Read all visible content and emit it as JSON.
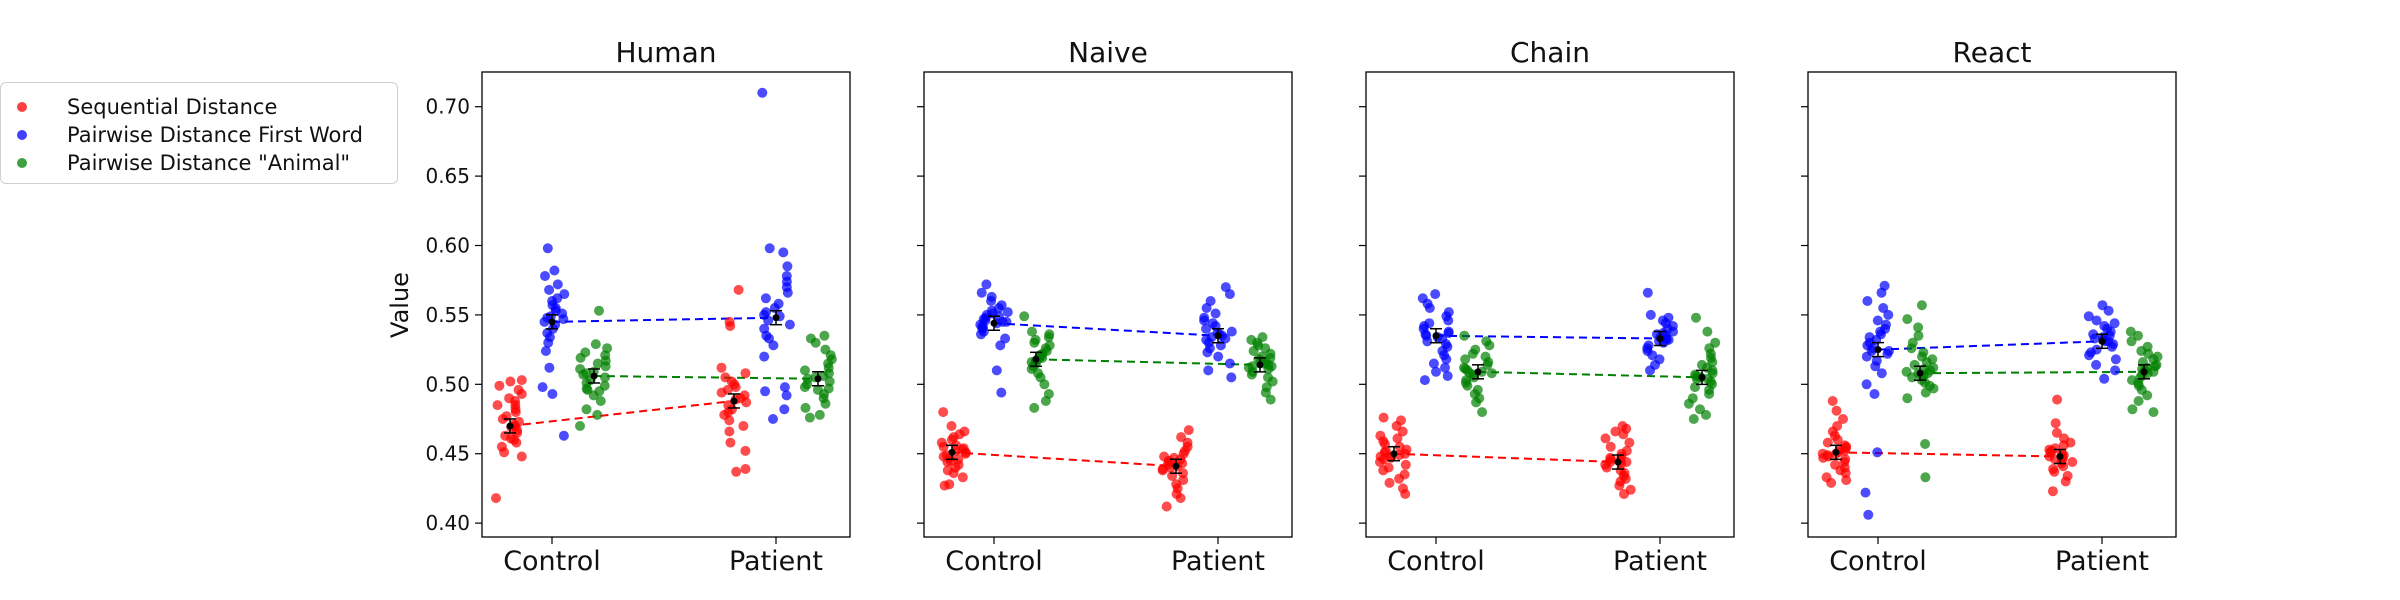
{
  "colors": {
    "sequential": "#ff0000",
    "pairwise_first": "#0000ff",
    "pairwise_animal": "#008000"
  },
  "chart_data": {
    "type": "scatter",
    "ylabel": "Value",
    "ylim": [
      0.39,
      0.725
    ],
    "yticks": [
      "0.40",
      "0.45",
      "0.50",
      "0.55",
      "0.60",
      "0.65",
      "0.70"
    ],
    "categories": [
      "Control",
      "Patient"
    ],
    "legend": {
      "placement": "left",
      "entries": [
        "Sequential Distance",
        "Pairwise Distance First Word",
        "Pairwise Distance \"Animal\""
      ]
    },
    "panels": [
      {
        "title": "Human",
        "means": {
          "sequential": [
            0.47,
            0.488
          ],
          "pairwise_first": [
            0.545,
            0.548
          ],
          "pairwise_animal": [
            0.506,
            0.504
          ]
        },
        "series": [
          {
            "key": "sequential",
            "group": "Control",
            "values": [
              0.418,
              0.448,
              0.451,
              0.455,
              0.458,
              0.461,
              0.463,
              0.465,
              0.467,
              0.469,
              0.47,
              0.471,
              0.473,
              0.475,
              0.477,
              0.48,
              0.482,
              0.485,
              0.488,
              0.49,
              0.493,
              0.496,
              0.499,
              0.502,
              0.503,
              0.485,
              0.46
            ]
          },
          {
            "key": "sequential",
            "group": "Patient",
            "values": [
              0.437,
              0.439,
              0.452,
              0.458,
              0.466,
              0.47,
              0.474,
              0.478,
              0.48,
              0.482,
              0.485,
              0.487,
              0.489,
              0.49,
              0.492,
              0.494,
              0.496,
              0.498,
              0.5,
              0.502,
              0.505,
              0.508,
              0.512,
              0.542,
              0.545,
              0.568
            ]
          },
          {
            "key": "pairwise_first",
            "group": "Control",
            "values": [
              0.463,
              0.493,
              0.498,
              0.512,
              0.524,
              0.53,
              0.534,
              0.537,
              0.54,
              0.543,
              0.545,
              0.547,
              0.549,
              0.551,
              0.553,
              0.555,
              0.557,
              0.56,
              0.562,
              0.565,
              0.568,
              0.572,
              0.578,
              0.582,
              0.598,
              0.548
            ]
          },
          {
            "key": "pairwise_first",
            "group": "Patient",
            "values": [
              0.475,
              0.482,
              0.492,
              0.495,
              0.498,
              0.52,
              0.528,
              0.535,
              0.54,
              0.543,
              0.546,
              0.549,
              0.552,
              0.555,
              0.558,
              0.562,
              0.566,
              0.57,
              0.574,
              0.578,
              0.585,
              0.595,
              0.598,
              0.71,
              0.533,
              0.55
            ]
          },
          {
            "key": "pairwise_animal",
            "group": "Control",
            "values": [
              0.47,
              0.478,
              0.482,
              0.488,
              0.492,
              0.495,
              0.497,
              0.499,
              0.501,
              0.503,
              0.505,
              0.507,
              0.509,
              0.511,
              0.513,
              0.515,
              0.517,
              0.519,
              0.521,
              0.523,
              0.526,
              0.529,
              0.553,
              0.496,
              0.508
            ]
          },
          {
            "key": "pairwise_animal",
            "group": "Patient",
            "values": [
              0.476,
              0.478,
              0.483,
              0.486,
              0.49,
              0.493,
              0.496,
              0.498,
              0.5,
              0.502,
              0.504,
              0.506,
              0.508,
              0.51,
              0.512,
              0.515,
              0.518,
              0.521,
              0.525,
              0.53,
              0.533,
              0.535,
              0.497,
              0.505
            ]
          }
        ]
      },
      {
        "title": "Naive",
        "means": {
          "sequential": [
            0.451,
            0.441
          ],
          "pairwise_first": [
            0.544,
            0.535
          ],
          "pairwise_animal": [
            0.518,
            0.514
          ]
        },
        "series": [
          {
            "key": "sequential",
            "group": "Control",
            "values": [
              0.427,
              0.428,
              0.433,
              0.436,
              0.438,
              0.44,
              0.442,
              0.444,
              0.446,
              0.447,
              0.448,
              0.449,
              0.45,
              0.451,
              0.452,
              0.453,
              0.454,
              0.455,
              0.456,
              0.458,
              0.46,
              0.462,
              0.464,
              0.466,
              0.47,
              0.48,
              0.445
            ]
          },
          {
            "key": "sequential",
            "group": "Patient",
            "values": [
              0.412,
              0.418,
              0.421,
              0.425,
              0.428,
              0.431,
              0.434,
              0.436,
              0.438,
              0.44,
              0.441,
              0.442,
              0.443,
              0.444,
              0.445,
              0.446,
              0.447,
              0.448,
              0.45,
              0.452,
              0.455,
              0.458,
              0.462,
              0.467,
              0.439
            ]
          },
          {
            "key": "pairwise_first",
            "group": "Control",
            "values": [
              0.494,
              0.51,
              0.528,
              0.533,
              0.536,
              0.538,
              0.54,
              0.541,
              0.542,
              0.543,
              0.544,
              0.545,
              0.546,
              0.547,
              0.548,
              0.549,
              0.55,
              0.551,
              0.552,
              0.553,
              0.555,
              0.557,
              0.56,
              0.563,
              0.566,
              0.572,
              0.545
            ]
          },
          {
            "key": "pairwise_first",
            "group": "Patient",
            "values": [
              0.505,
              0.51,
              0.515,
              0.52,
              0.523,
              0.526,
              0.528,
              0.53,
              0.532,
              0.534,
              0.535,
              0.536,
              0.537,
              0.538,
              0.54,
              0.542,
              0.544,
              0.546,
              0.548,
              0.551,
              0.555,
              0.56,
              0.565,
              0.57,
              0.533
            ]
          },
          {
            "key": "pairwise_animal",
            "group": "Control",
            "values": [
              0.483,
              0.488,
              0.493,
              0.5,
              0.505,
              0.508,
              0.511,
              0.513,
              0.515,
              0.517,
              0.518,
              0.519,
              0.52,
              0.521,
              0.522,
              0.524,
              0.526,
              0.528,
              0.53,
              0.532,
              0.534,
              0.536,
              0.538,
              0.549,
              0.516
            ]
          },
          {
            "key": "pairwise_animal",
            "group": "Patient",
            "values": [
              0.489,
              0.494,
              0.498,
              0.502,
              0.505,
              0.507,
              0.509,
              0.511,
              0.512,
              0.513,
              0.514,
              0.515,
              0.516,
              0.517,
              0.518,
              0.519,
              0.52,
              0.522,
              0.524,
              0.526,
              0.528,
              0.53,
              0.532,
              0.534,
              0.513
            ]
          }
        ]
      },
      {
        "title": "Chain",
        "means": {
          "sequential": [
            0.45,
            0.444
          ],
          "pairwise_first": [
            0.535,
            0.533
          ],
          "pairwise_animal": [
            0.509,
            0.505
          ]
        },
        "series": [
          {
            "key": "sequential",
            "group": "Control",
            "values": [
              0.421,
              0.425,
              0.429,
              0.432,
              0.435,
              0.438,
              0.44,
              0.442,
              0.444,
              0.446,
              0.447,
              0.448,
              0.449,
              0.45,
              0.451,
              0.452,
              0.453,
              0.455,
              0.457,
              0.459,
              0.461,
              0.463,
              0.466,
              0.47,
              0.474,
              0.476,
              0.448
            ]
          },
          {
            "key": "sequential",
            "group": "Patient",
            "values": [
              0.421,
              0.424,
              0.427,
              0.43,
              0.432,
              0.434,
              0.436,
              0.438,
              0.44,
              0.442,
              0.443,
              0.444,
              0.445,
              0.446,
              0.447,
              0.448,
              0.45,
              0.452,
              0.455,
              0.458,
              0.461,
              0.464,
              0.466,
              0.468,
              0.47,
              0.444
            ]
          },
          {
            "key": "pairwise_first",
            "group": "Control",
            "values": [
              0.503,
              0.506,
              0.509,
              0.512,
              0.515,
              0.518,
              0.521,
              0.524,
              0.527,
              0.529,
              0.531,
              0.533,
              0.535,
              0.536,
              0.537,
              0.538,
              0.54,
              0.542,
              0.544,
              0.546,
              0.549,
              0.552,
              0.555,
              0.558,
              0.562,
              0.565,
              0.534
            ]
          },
          {
            "key": "pairwise_first",
            "group": "Patient",
            "values": [
              0.51,
              0.514,
              0.518,
              0.521,
              0.524,
              0.526,
              0.528,
              0.53,
              0.531,
              0.532,
              0.533,
              0.534,
              0.535,
              0.536,
              0.537,
              0.538,
              0.54,
              0.542,
              0.544,
              0.546,
              0.548,
              0.55,
              0.566,
              0.532
            ]
          },
          {
            "key": "pairwise_animal",
            "group": "Control",
            "values": [
              0.48,
              0.487,
              0.49,
              0.493,
              0.496,
              0.499,
              0.501,
              0.503,
              0.505,
              0.507,
              0.508,
              0.509,
              0.51,
              0.511,
              0.512,
              0.514,
              0.516,
              0.518,
              0.52,
              0.522,
              0.525,
              0.528,
              0.531,
              0.535,
              0.508
            ]
          },
          {
            "key": "pairwise_animal",
            "group": "Patient",
            "values": [
              0.475,
              0.478,
              0.482,
              0.486,
              0.49,
              0.493,
              0.496,
              0.498,
              0.5,
              0.502,
              0.504,
              0.505,
              0.506,
              0.507,
              0.508,
              0.51,
              0.512,
              0.514,
              0.516,
              0.519,
              0.522,
              0.526,
              0.53,
              0.538,
              0.548,
              0.504
            ]
          }
        ]
      },
      {
        "title": "React",
        "means": {
          "sequential": [
            0.451,
            0.448
          ],
          "pairwise_first": [
            0.525,
            0.531
          ],
          "pairwise_animal": [
            0.508,
            0.509
          ]
        },
        "series": [
          {
            "key": "sequential",
            "group": "Control",
            "values": [
              0.429,
              0.431,
              0.433,
              0.436,
              0.438,
              0.44,
              0.442,
              0.444,
              0.446,
              0.447,
              0.448,
              0.449,
              0.45,
              0.451,
              0.452,
              0.453,
              0.454,
              0.455,
              0.456,
              0.458,
              0.46,
              0.463,
              0.466,
              0.47,
              0.475,
              0.481,
              0.488,
              0.45
            ]
          },
          {
            "key": "sequential",
            "group": "Patient",
            "values": [
              0.423,
              0.43,
              0.434,
              0.437,
              0.439,
              0.441,
              0.443,
              0.444,
              0.445,
              0.446,
              0.447,
              0.448,
              0.449,
              0.45,
              0.451,
              0.452,
              0.453,
              0.454,
              0.456,
              0.458,
              0.461,
              0.465,
              0.472,
              0.489,
              0.448
            ]
          },
          {
            "key": "pairwise_first",
            "group": "Control",
            "values": [
              0.406,
              0.422,
              0.451,
              0.493,
              0.5,
              0.508,
              0.513,
              0.517,
              0.52,
              0.522,
              0.524,
              0.526,
              0.528,
              0.53,
              0.532,
              0.534,
              0.536,
              0.538,
              0.54,
              0.543,
              0.546,
              0.55,
              0.555,
              0.56,
              0.566,
              0.571,
              0.524
            ]
          },
          {
            "key": "pairwise_first",
            "group": "Patient",
            "values": [
              0.504,
              0.51,
              0.514,
              0.518,
              0.521,
              0.523,
              0.525,
              0.527,
              0.529,
              0.531,
              0.532,
              0.533,
              0.534,
              0.535,
              0.536,
              0.538,
              0.54,
              0.542,
              0.544,
              0.546,
              0.549,
              0.553,
              0.557,
              0.531
            ]
          },
          {
            "key": "pairwise_animal",
            "group": "Control",
            "values": [
              0.433,
              0.457,
              0.49,
              0.494,
              0.497,
              0.499,
              0.501,
              0.503,
              0.505,
              0.506,
              0.507,
              0.508,
              0.509,
              0.51,
              0.511,
              0.512,
              0.514,
              0.516,
              0.518,
              0.52,
              0.523,
              0.526,
              0.53,
              0.535,
              0.541,
              0.547,
              0.557,
              0.508
            ]
          },
          {
            "key": "pairwise_animal",
            "group": "Patient",
            "values": [
              0.48,
              0.482,
              0.488,
              0.492,
              0.496,
              0.499,
              0.501,
              0.503,
              0.505,
              0.507,
              0.508,
              0.509,
              0.51,
              0.511,
              0.512,
              0.513,
              0.514,
              0.516,
              0.518,
              0.52,
              0.522,
              0.524,
              0.527,
              0.531,
              0.535,
              0.538,
              0.509
            ]
          }
        ]
      }
    ]
  }
}
